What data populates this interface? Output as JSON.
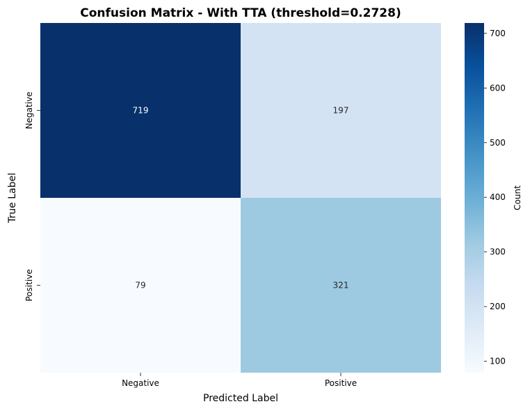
{
  "chart_data": {
    "type": "heatmap",
    "title": "Confusion Matrix - With TTA (threshold=0.2728)",
    "xlabel": "Predicted Label",
    "ylabel": "True Label",
    "x_categories": [
      "Negative",
      "Positive"
    ],
    "y_categories": [
      "Negative",
      "Positive"
    ],
    "values": [
      [
        719,
        197
      ],
      [
        79,
        321
      ]
    ],
    "colormap": "Blues",
    "grid": false,
    "colorbar": {
      "label": "Count",
      "min": 79,
      "max": 719,
      "ticks": [
        "100",
        "200",
        "300",
        "400",
        "500",
        "600",
        "700"
      ]
    }
  }
}
